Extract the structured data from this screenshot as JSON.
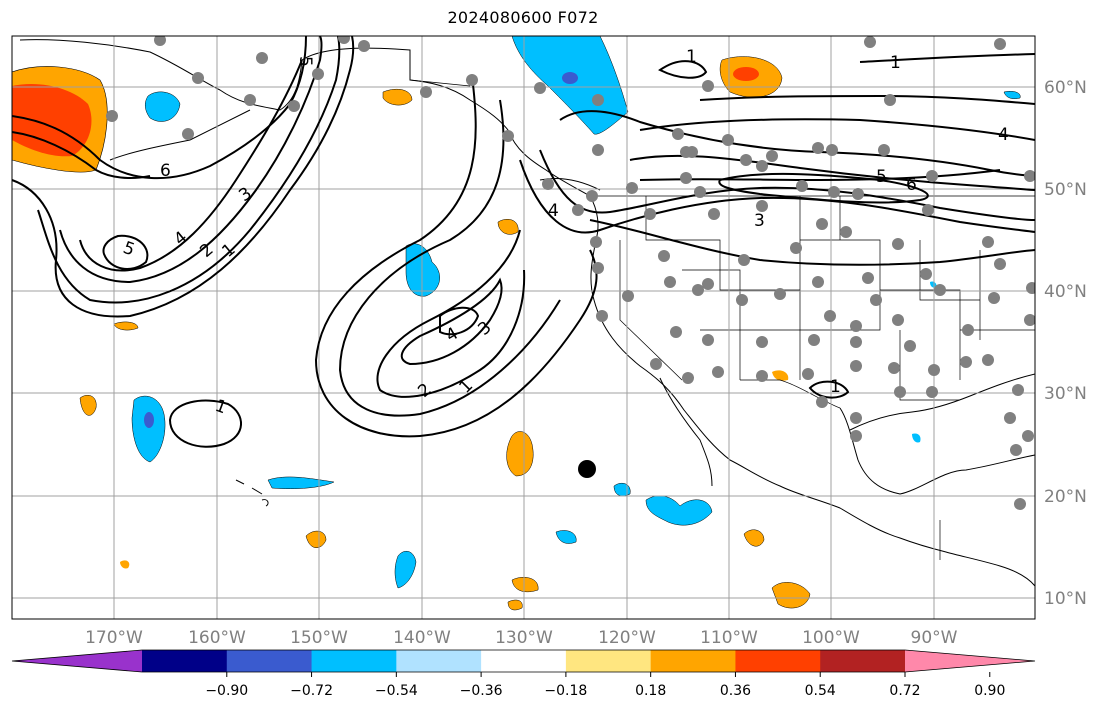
{
  "title": "2024080600 F072",
  "map": {
    "lon_ticks": [
      "170°W",
      "160°W",
      "150°W",
      "140°W",
      "130°W",
      "120°W",
      "110°W",
      "100°W",
      "90°W"
    ],
    "lat_ticks": [
      "60°N",
      "50°N",
      "40°N",
      "30°N",
      "20°N",
      "10°N"
    ],
    "contour_labels": [
      "1",
      "2",
      "3",
      "4",
      "5",
      "6"
    ],
    "shading_colors_negative": [
      "#9932cc",
      "#00008b",
      "#3a5bcf",
      "#00bfff",
      "#b0e2ff"
    ],
    "shading_colors_positive": [
      "#ffe680",
      "#ffa500",
      "#ff4000",
      "#b22222",
      "#ff88aa"
    ]
  },
  "colorbar": {
    "ticks": [
      "−0.90",
      "−0.72",
      "−0.54",
      "−0.36",
      "−0.18",
      "0.18",
      "0.36",
      "0.54",
      "0.72",
      "0.90"
    ],
    "colors": [
      "#9932cc",
      "#000088",
      "#3a5bcf",
      "#00bfff",
      "#b0e2ff",
      "#ffffff",
      "#ffe680",
      "#ffa500",
      "#ff4000",
      "#b22222",
      "#ff88aa"
    ]
  }
}
